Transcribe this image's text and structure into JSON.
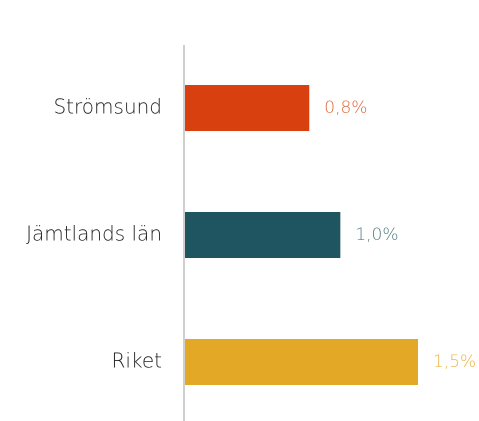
{
  "chart_data": {
    "type": "barh",
    "categories": [
      "Strömsund",
      "Jämtlands län",
      "Riket"
    ],
    "values": [
      0.8,
      1.0,
      1.5
    ],
    "value_labels": [
      "0,8%",
      "1,0%",
      "1,5%"
    ],
    "colors": [
      "#d9400f",
      "#1f5560",
      "#e3a826"
    ],
    "label_colors": [
      "#e0693b",
      "#557d84",
      "#e8b54a"
    ]
  }
}
